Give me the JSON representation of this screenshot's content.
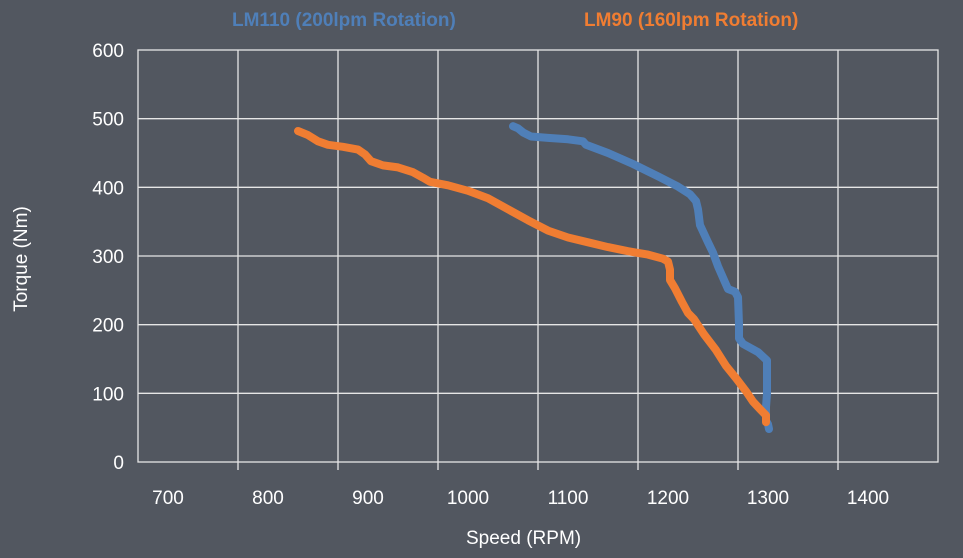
{
  "chart_data": {
    "type": "line",
    "title": "",
    "xlabel": "Speed (RPM)",
    "ylabel": "Torque (Nm)",
    "xlim": [
      700,
      1400
    ],
    "ylim": [
      0,
      600
    ],
    "x_ticks": [
      700,
      800,
      900,
      1000,
      1100,
      1200,
      1300,
      1400
    ],
    "y_ticks": [
      0,
      100,
      200,
      300,
      400,
      500,
      600
    ],
    "grid": true,
    "legend_position": "top",
    "series": [
      {
        "name": "LM110 (200lpm Rotation)",
        "color": "#4F7FB8",
        "points": [
          [
            1045,
            489
          ],
          [
            1050,
            486
          ],
          [
            1055,
            480
          ],
          [
            1063,
            474
          ],
          [
            1080,
            472
          ],
          [
            1100,
            470
          ],
          [
            1115,
            467
          ],
          [
            1118,
            462
          ],
          [
            1140,
            450
          ],
          [
            1165,
            434
          ],
          [
            1190,
            416
          ],
          [
            1210,
            401
          ],
          [
            1222,
            390
          ],
          [
            1228,
            380
          ],
          [
            1230,
            368
          ],
          [
            1232,
            345
          ],
          [
            1240,
            320
          ],
          [
            1245,
            305
          ],
          [
            1250,
            285
          ],
          [
            1256,
            265
          ],
          [
            1260,
            252
          ],
          [
            1267,
            248
          ],
          [
            1270,
            240
          ],
          [
            1271,
            200
          ],
          [
            1271,
            180
          ],
          [
            1275,
            172
          ],
          [
            1290,
            160
          ],
          [
            1299,
            148
          ],
          [
            1299,
            130
          ],
          [
            1299,
            100
          ],
          [
            1298,
            80
          ],
          [
            1298,
            60
          ],
          [
            1300,
            55
          ],
          [
            1301,
            48
          ]
        ]
      },
      {
        "name": "LM90 (160lpm Rotation)",
        "color": "#F07D32",
        "points": [
          [
            830,
            482
          ],
          [
            840,
            476
          ],
          [
            850,
            467
          ],
          [
            860,
            462
          ],
          [
            875,
            459
          ],
          [
            890,
            455
          ],
          [
            897,
            448
          ],
          [
            903,
            438
          ],
          [
            915,
            432
          ],
          [
            930,
            429
          ],
          [
            945,
            422
          ],
          [
            955,
            414
          ],
          [
            962,
            408
          ],
          [
            980,
            403
          ],
          [
            1000,
            395
          ],
          [
            1020,
            384
          ],
          [
            1040,
            368
          ],
          [
            1060,
            352
          ],
          [
            1080,
            337
          ],
          [
            1100,
            327
          ],
          [
            1120,
            320
          ],
          [
            1140,
            313
          ],
          [
            1160,
            307
          ],
          [
            1180,
            302
          ],
          [
            1195,
            296
          ],
          [
            1200,
            292
          ],
          [
            1202,
            280
          ],
          [
            1202,
            265
          ],
          [
            1207,
            253
          ],
          [
            1214,
            233
          ],
          [
            1220,
            217
          ],
          [
            1226,
            208
          ],
          [
            1236,
            186
          ],
          [
            1248,
            163
          ],
          [
            1258,
            140
          ],
          [
            1268,
            122
          ],
          [
            1278,
            103
          ],
          [
            1285,
            88
          ],
          [
            1292,
            77
          ],
          [
            1298,
            68
          ],
          [
            1298,
            58
          ]
        ]
      }
    ]
  }
}
